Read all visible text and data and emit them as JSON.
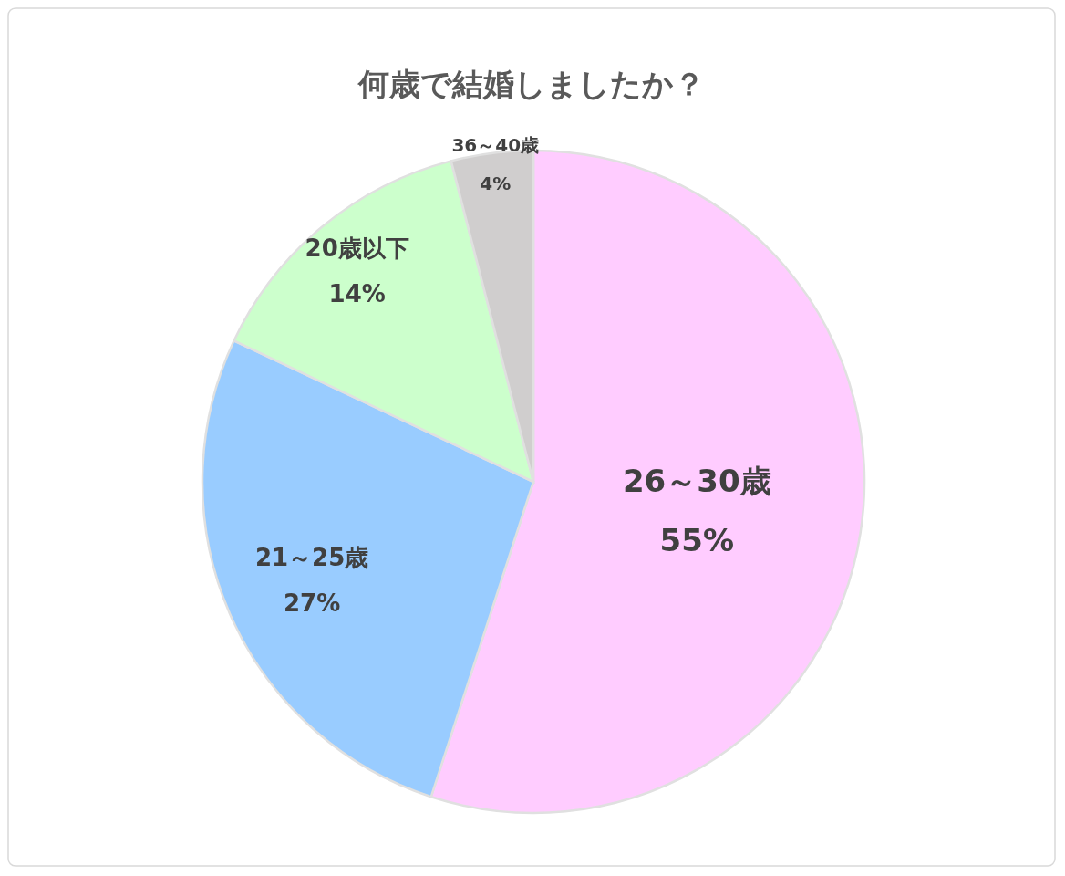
{
  "chart_data": {
    "type": "pie",
    "title": "何歳で結婚しましたか？",
    "categories": [
      "26～30歳",
      "21～25歳",
      "20歳以下",
      "36～40歳"
    ],
    "values": [
      55,
      27,
      14,
      4
    ],
    "value_labels": [
      "55%",
      "27%",
      "14%",
      "4%"
    ],
    "colors": [
      "#ffccff",
      "#99ccff",
      "#ccffcc",
      "#d0cece"
    ]
  }
}
